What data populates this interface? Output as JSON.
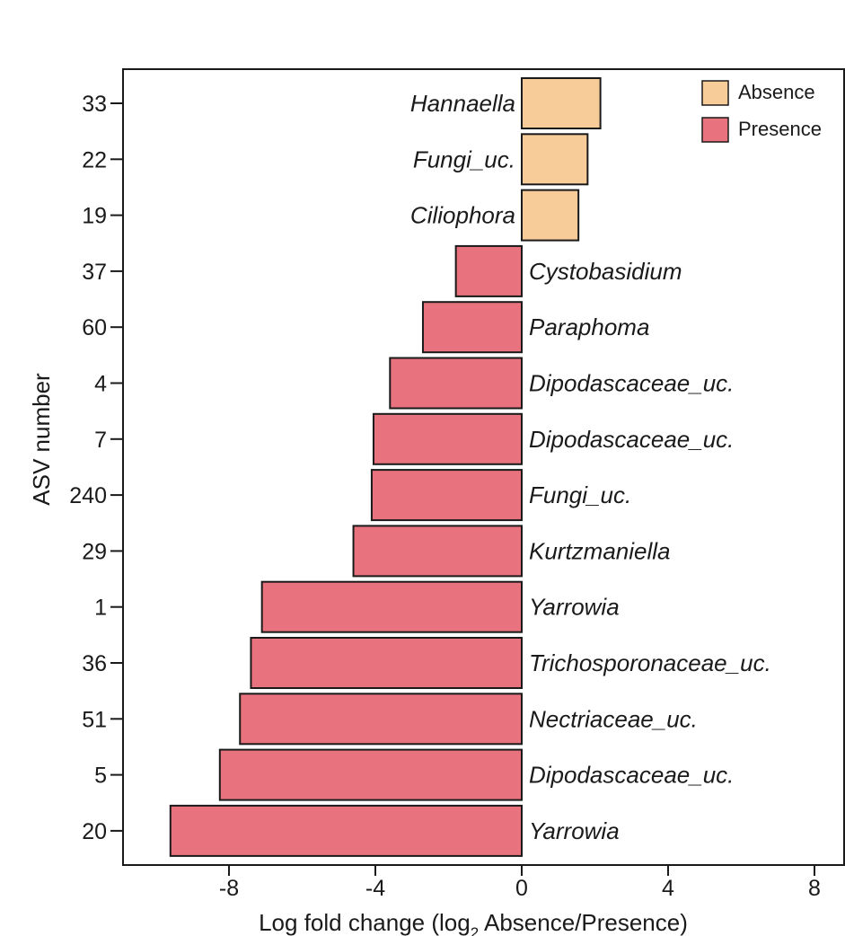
{
  "chart_data": {
    "type": "bar",
    "orientation": "horizontal",
    "title": "",
    "xlabel_prefix": "Log fold change (log",
    "xlabel_sub": "2",
    "xlabel_suffix": " Absence/Presence)",
    "ylabel": "ASV number",
    "xlim": [
      -10,
      8
    ],
    "xticks": [
      -8,
      -4,
      0,
      4,
      8
    ],
    "legend_position": "top-right",
    "colors": {
      "Absence": "#f7cc99",
      "Presence": "#e8737e"
    },
    "legend": [
      {
        "name": "Absence"
      },
      {
        "name": "Presence"
      }
    ],
    "bars": [
      {
        "asv": "33",
        "taxon": "Hannaella",
        "value": 2.15,
        "group": "Absence"
      },
      {
        "asv": "22",
        "taxon": "Fungi_uc.",
        "value": 1.8,
        "group": "Absence"
      },
      {
        "asv": "19",
        "taxon": "Ciliophora",
        "value": 1.55,
        "group": "Absence"
      },
      {
        "asv": "37",
        "taxon": "Cystobasidium",
        "value": -1.8,
        "group": "Presence"
      },
      {
        "asv": "60",
        "taxon": "Paraphoma",
        "value": -2.7,
        "group": "Presence"
      },
      {
        "asv": "4",
        "taxon": "Dipodascaceae_uc.",
        "value": -3.6,
        "group": "Presence"
      },
      {
        "asv": "7",
        "taxon": "Dipodascaceae_uc.",
        "value": -4.05,
        "group": "Presence"
      },
      {
        "asv": "240",
        "taxon": "Fungi_uc.",
        "value": -4.1,
        "group": "Presence"
      },
      {
        "asv": "29",
        "taxon": "Kurtzmaniella",
        "value": -4.6,
        "group": "Presence"
      },
      {
        "asv": "1",
        "taxon": "Yarrowia",
        "value": -7.1,
        "group": "Presence"
      },
      {
        "asv": "36",
        "taxon": "Trichosporonaceae_uc.",
        "value": -7.4,
        "group": "Presence"
      },
      {
        "asv": "51",
        "taxon": "Nectriaceae_uc.",
        "value": -7.7,
        "group": "Presence"
      },
      {
        "asv": "5",
        "taxon": "Dipodascaceae_uc.",
        "value": -8.25,
        "group": "Presence"
      },
      {
        "asv": "20",
        "taxon": "Yarrowia",
        "value": -9.6,
        "group": "Presence"
      }
    ]
  }
}
